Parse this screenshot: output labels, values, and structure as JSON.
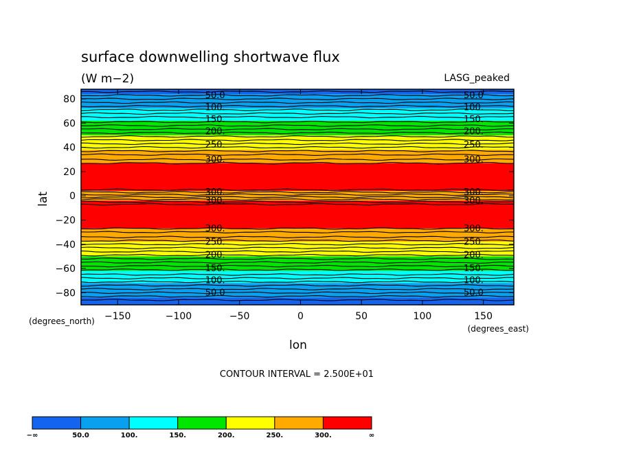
{
  "chart_data": {
    "type": "heatmap",
    "title": "surface downwelling shortwave flux",
    "subtitle": "(W m−2)",
    "dataset_label": "LASG_peaked",
    "xlabel": "lon",
    "ylabel": "lat",
    "x_units": "(degrees_east)",
    "y_units": "(degrees_north)",
    "xlim": [
      -180,
      175
    ],
    "ylim": [
      -90,
      88
    ],
    "x_ticks": [
      -150,
      -100,
      -50,
      0,
      50,
      100,
      150
    ],
    "x_tick_labels": [
      "−150",
      "−100",
      "−50",
      "0",
      "50",
      "100",
      "150"
    ],
    "y_ticks": [
      80,
      60,
      40,
      20,
      0,
      -20,
      -40,
      -60,
      -80
    ],
    "y_tick_labels": [
      "80",
      "60",
      "40",
      "20",
      "0",
      "−20",
      "−40",
      "−60",
      "−80"
    ],
    "contour_interval_text": "CONTOUR INTERVAL = 2.500E+01",
    "contour_interval": 25,
    "levels": [
      50,
      100,
      150,
      200,
      250,
      300
    ],
    "colorbar": {
      "colors": [
        "#1464f0",
        "#0aa0f0",
        "#00ffff",
        "#00e600",
        "#ffff00",
        "#ffaa00",
        "#ff0000"
      ],
      "labels": [
        "−∞",
        "50.0",
        "100.",
        "150.",
        "200.",
        "250.",
        "300.",
        "∞"
      ]
    },
    "bands": [
      {
        "lat_min": 84,
        "lat_max": 88,
        "color": "#1464f0"
      },
      {
        "lat_min": 72,
        "lat_max": 84,
        "color": "#0aa0f0"
      },
      {
        "lat_min": 62,
        "lat_max": 72,
        "color": "#00ffff"
      },
      {
        "lat_min": 50,
        "lat_max": 62,
        "color": "#00e600"
      },
      {
        "lat_min": 38,
        "lat_max": 50,
        "color": "#ffff00"
      },
      {
        "lat_min": 27,
        "lat_max": 38,
        "color": "#ffaa00"
      },
      {
        "lat_min": 4,
        "lat_max": 27,
        "color": "#ff0000"
      },
      {
        "lat_min": -4,
        "lat_max": 4,
        "color": "#ffaa00"
      },
      {
        "lat_min": -27,
        "lat_max": -4,
        "color": "#ff0000"
      },
      {
        "lat_min": -38,
        "lat_max": -27,
        "color": "#ffaa00"
      },
      {
        "lat_min": -50,
        "lat_max": -38,
        "color": "#ffff00"
      },
      {
        "lat_min": -62,
        "lat_max": -50,
        "color": "#00e600"
      },
      {
        "lat_min": -72,
        "lat_max": -62,
        "color": "#00ffff"
      },
      {
        "lat_min": -84,
        "lat_max": -72,
        "color": "#0aa0f0"
      },
      {
        "lat_min": -90,
        "lat_max": -84,
        "color": "#1464f0"
      }
    ],
    "contour_lines": [
      86,
      83,
      80,
      77,
      74,
      71,
      68,
      65,
      61,
      58,
      55,
      52,
      49,
      46,
      43,
      40,
      37,
      34,
      30,
      27,
      5,
      3,
      1,
      -1,
      -3,
      -5,
      -7,
      -27,
      -30,
      -34,
      -37,
      -40,
      -43,
      -46,
      -49,
      -52,
      -55,
      -58,
      -61,
      -65,
      -68,
      -71,
      -74,
      -77,
      -80,
      -83,
      -86
    ],
    "contour_labels": [
      {
        "text": "50.0",
        "lat": 83,
        "lon": [
          -70,
          142
        ]
      },
      {
        "text": "100.",
        "lat": 73,
        "lon": [
          -70,
          142
        ]
      },
      {
        "text": "150.",
        "lat": 63,
        "lon": [
          -70,
          142
        ]
      },
      {
        "text": "200.",
        "lat": 53,
        "lon": [
          -70,
          142
        ]
      },
      {
        "text": "250.",
        "lat": 42,
        "lon": [
          -70,
          142
        ]
      },
      {
        "text": "300.",
        "lat": 30,
        "lon": [
          -70,
          142
        ]
      },
      {
        "text": "300.",
        "lat": 3,
        "lon": [
          -70,
          142
        ]
      },
      {
        "text": "300.",
        "lat": -4,
        "lon": [
          -70,
          142
        ]
      },
      {
        "text": "300.",
        "lat": -27,
        "lon": [
          -70,
          142
        ]
      },
      {
        "text": "250.",
        "lat": -38,
        "lon": [
          -70,
          142
        ]
      },
      {
        "text": "200.",
        "lat": -49,
        "lon": [
          -70,
          142
        ]
      },
      {
        "text": "150.",
        "lat": -60,
        "lon": [
          -70,
          142
        ]
      },
      {
        "text": "100.",
        "lat": -70,
        "lon": [
          -70,
          142
        ]
      },
      {
        "text": "50.0",
        "lat": -80,
        "lon": [
          -70,
          142
        ]
      }
    ]
  }
}
